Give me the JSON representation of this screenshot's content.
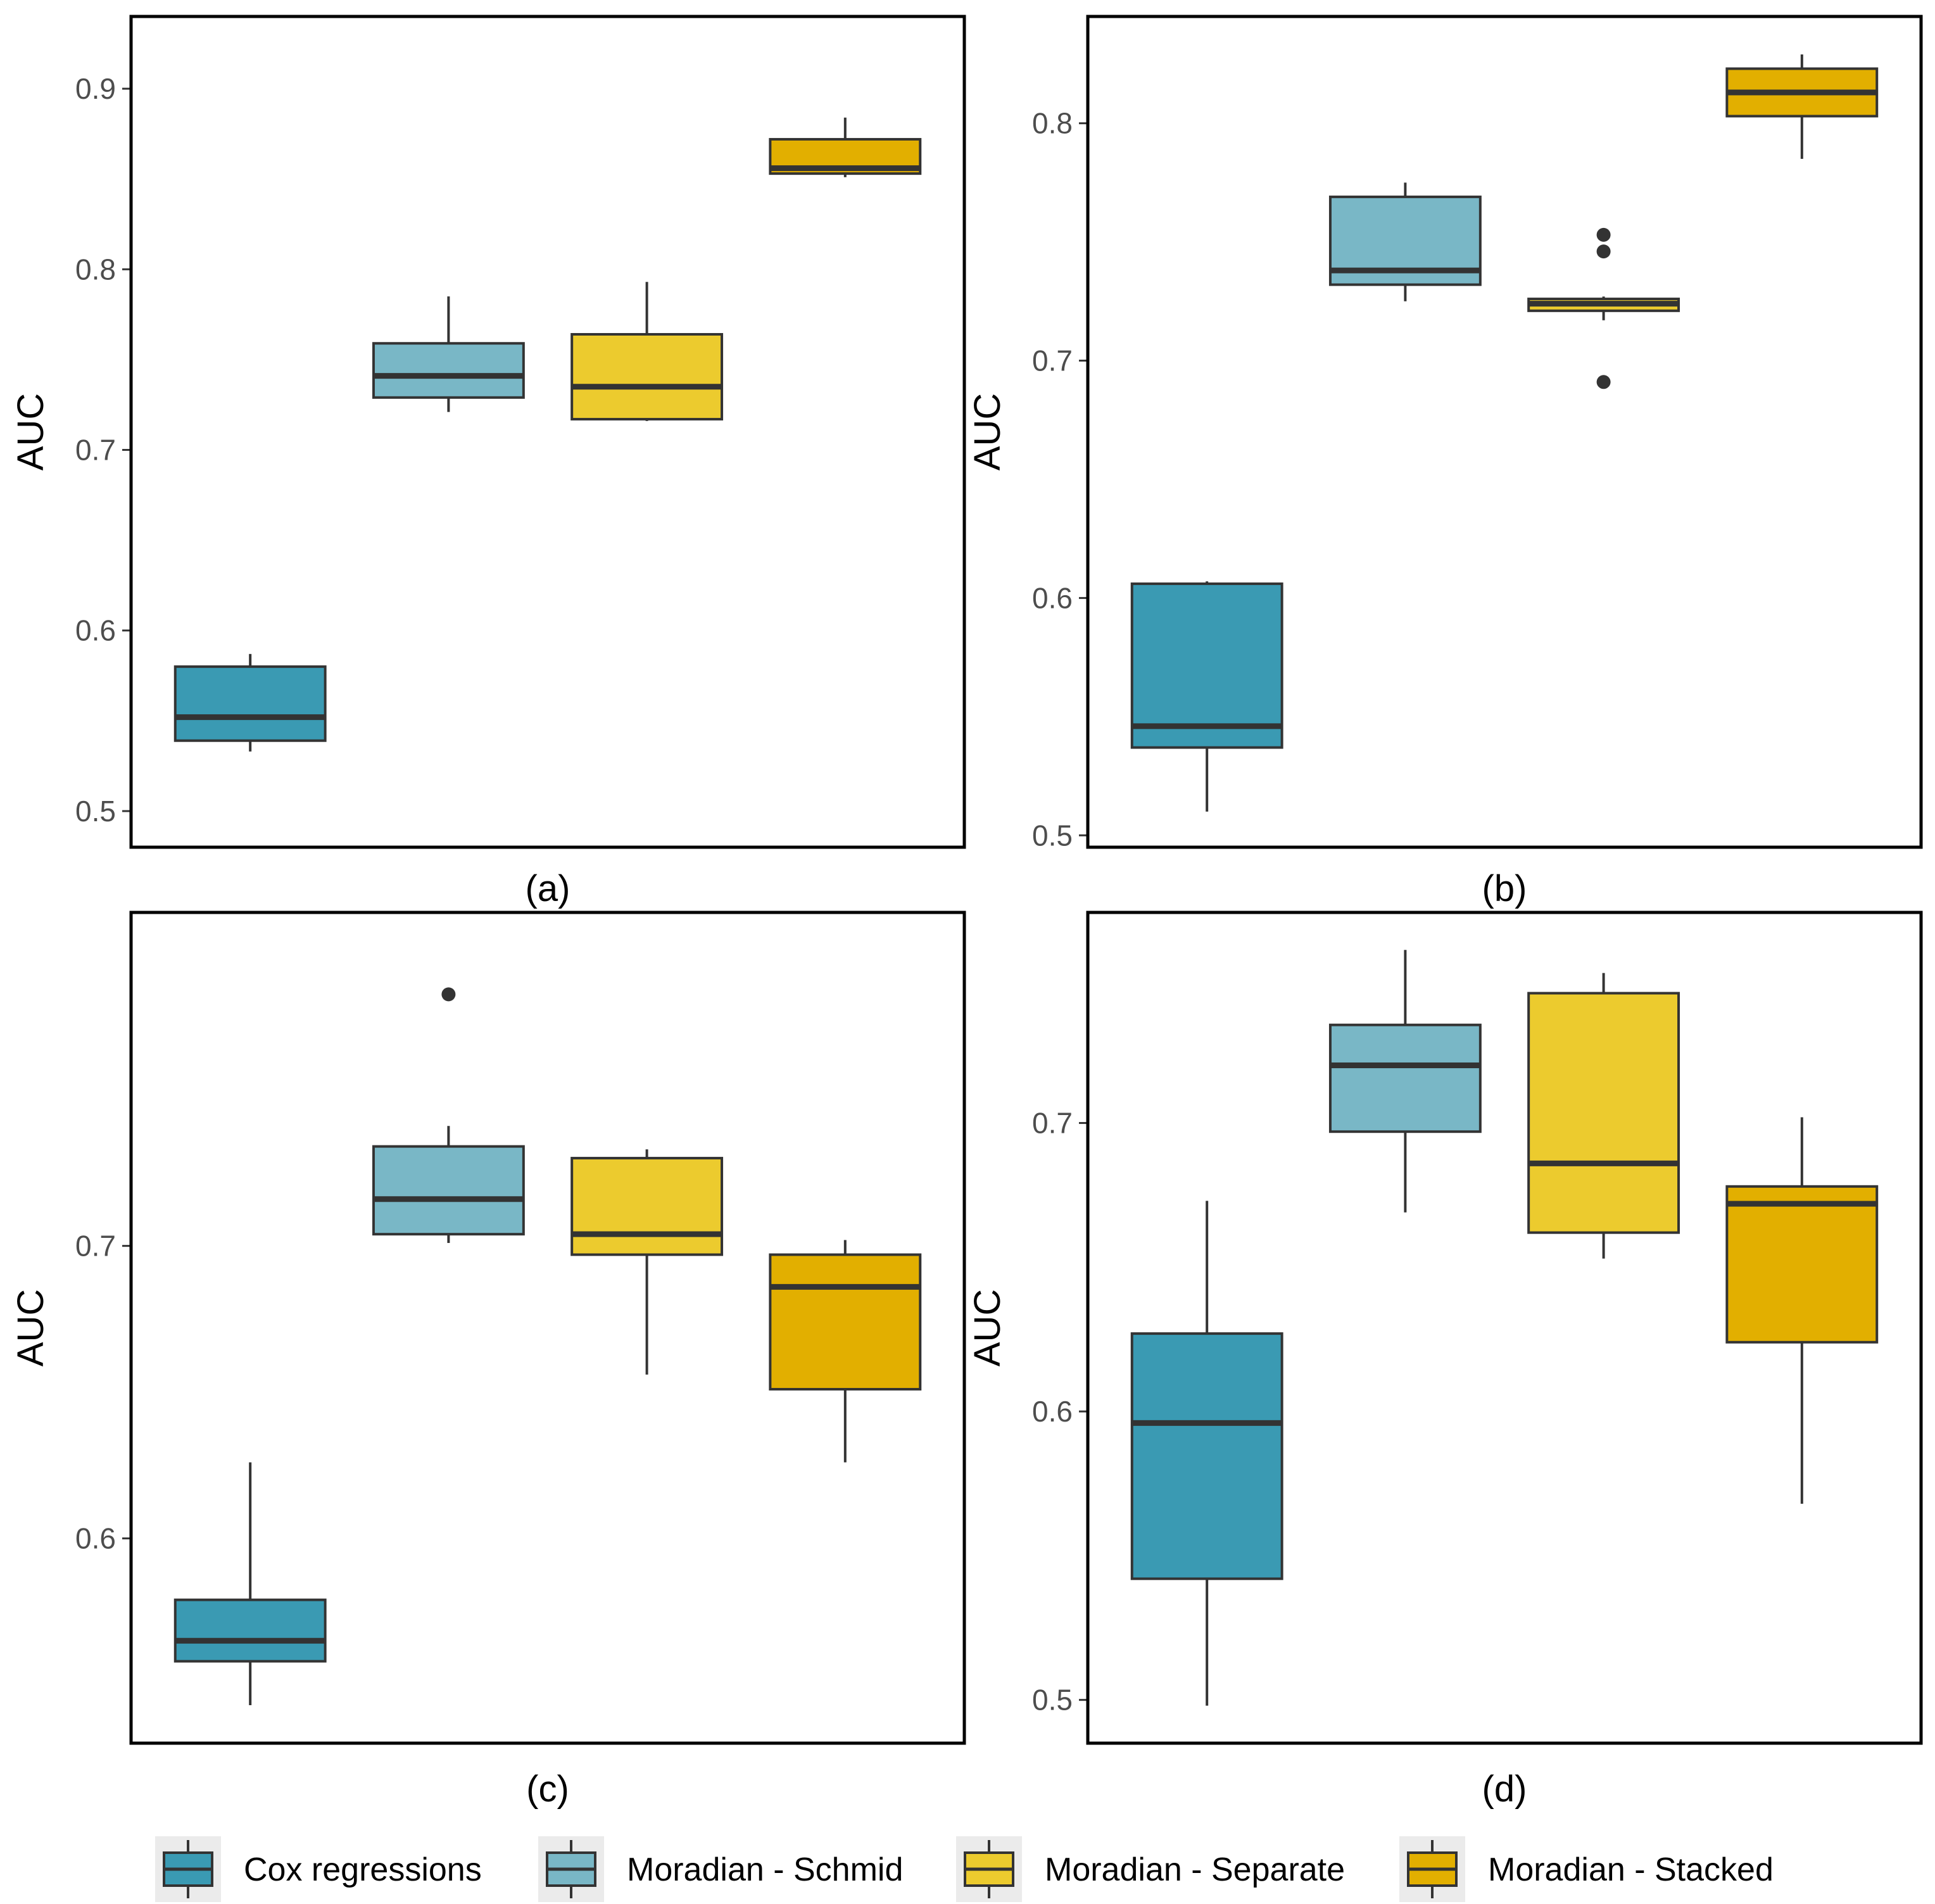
{
  "chart_data": [
    {
      "type": "box",
      "panel_label": "(a)",
      "ylabel": "AUC",
      "ylim": [
        0.48,
        0.94
      ],
      "yticks": [
        0.5,
        0.6,
        0.7,
        0.8,
        0.9
      ],
      "ytick_labels": [
        "0.5",
        "0.6",
        "0.7",
        "0.8",
        "0.9"
      ],
      "grid": false,
      "series": [
        {
          "name": "Cox regressions",
          "whisker_low": 0.533,
          "q1": 0.539,
          "median": 0.552,
          "q3": 0.58,
          "whisker_high": 0.587,
          "outliers": []
        },
        {
          "name": "Moradian - Schmid",
          "whisker_low": 0.721,
          "q1": 0.729,
          "median": 0.741,
          "q3": 0.759,
          "whisker_high": 0.785,
          "outliers": []
        },
        {
          "name": "Moradian - Separate",
          "whisker_low": 0.716,
          "q1": 0.717,
          "median": 0.735,
          "q3": 0.764,
          "whisker_high": 0.793,
          "outliers": []
        },
        {
          "name": "Moradian - Stacked",
          "whisker_low": 0.851,
          "q1": 0.853,
          "median": 0.856,
          "q3": 0.872,
          "whisker_high": 0.884,
          "outliers": []
        }
      ]
    },
    {
      "type": "box",
      "panel_label": "(b)",
      "ylabel": "AUC",
      "ylim": [
        0.495,
        0.845
      ],
      "yticks": [
        0.5,
        0.6,
        0.7,
        0.8
      ],
      "ytick_labels": [
        "0.5",
        "0.6",
        "0.7",
        "0.8"
      ],
      "grid": false,
      "series": [
        {
          "name": "Cox regressions",
          "whisker_low": 0.51,
          "q1": 0.537,
          "median": 0.546,
          "q3": 0.606,
          "whisker_high": 0.607,
          "outliers": []
        },
        {
          "name": "Moradian - Schmid",
          "whisker_low": 0.725,
          "q1": 0.732,
          "median": 0.738,
          "q3": 0.769,
          "whisker_high": 0.775,
          "outliers": []
        },
        {
          "name": "Moradian - Separate",
          "whisker_low": 0.717,
          "q1": 0.721,
          "median": 0.724,
          "q3": 0.726,
          "whisker_high": 0.727,
          "outliers": [
            0.753,
            0.746,
            0.691
          ]
        },
        {
          "name": "Moradian - Stacked",
          "whisker_low": 0.785,
          "q1": 0.803,
          "median": 0.813,
          "q3": 0.823,
          "whisker_high": 0.829,
          "outliers": []
        }
      ]
    },
    {
      "type": "box",
      "panel_label": "(c)",
      "ylabel": "AUC",
      "ylim": [
        0.53,
        0.814
      ],
      "yticks": [
        0.6,
        0.7
      ],
      "ytick_labels": [
        "0.6",
        "0.7"
      ],
      "grid": false,
      "series": [
        {
          "name": "Cox regressions",
          "whisker_low": 0.543,
          "q1": 0.558,
          "median": 0.565,
          "q3": 0.579,
          "whisker_high": 0.626,
          "outliers": []
        },
        {
          "name": "Moradian - Schmid",
          "whisker_low": 0.701,
          "q1": 0.704,
          "median": 0.716,
          "q3": 0.734,
          "whisker_high": 0.741,
          "outliers": [
            0.786
          ]
        },
        {
          "name": "Moradian - Separate",
          "whisker_low": 0.656,
          "q1": 0.697,
          "median": 0.704,
          "q3": 0.73,
          "whisker_high": 0.733,
          "outliers": []
        },
        {
          "name": "Moradian - Stacked",
          "whisker_low": 0.626,
          "q1": 0.651,
          "median": 0.686,
          "q3": 0.697,
          "whisker_high": 0.702,
          "outliers": []
        }
      ]
    },
    {
      "type": "box",
      "panel_label": "(d)",
      "ylabel": "AUC",
      "ylim": [
        0.485,
        0.773
      ],
      "yticks": [
        0.5,
        0.6,
        0.7
      ],
      "ytick_labels": [
        "0.5",
        "0.6",
        "0.7"
      ],
      "grid": false,
      "series": [
        {
          "name": "Cox regressions",
          "whisker_low": 0.498,
          "q1": 0.542,
          "median": 0.596,
          "q3": 0.627,
          "whisker_high": 0.673,
          "outliers": []
        },
        {
          "name": "Moradian - Schmid",
          "whisker_low": 0.669,
          "q1": 0.697,
          "median": 0.72,
          "q3": 0.734,
          "whisker_high": 0.76,
          "outliers": []
        },
        {
          "name": "Moradian - Separate",
          "whisker_low": 0.653,
          "q1": 0.662,
          "median": 0.686,
          "q3": 0.745,
          "whisker_high": 0.752,
          "outliers": []
        },
        {
          "name": "Moradian - Stacked",
          "whisker_low": 0.568,
          "q1": 0.624,
          "median": 0.672,
          "q3": 0.678,
          "whisker_high": 0.702,
          "outliers": []
        }
      ]
    }
  ],
  "legend": {
    "position": "bottom",
    "entries": [
      {
        "label": "Cox regressions",
        "color": "#3A9AB3"
      },
      {
        "label": "Moradian - Schmid",
        "color": "#79B7C6"
      },
      {
        "label": "Moradian - Separate",
        "color": "#ECCB2E"
      },
      {
        "label": "Moradian - Stacked",
        "color": "#E2AF00"
      }
    ]
  },
  "colors": {
    "box_outline": "#333333",
    "outlier": "#333333",
    "legend_key_background": "#ebebeb"
  }
}
